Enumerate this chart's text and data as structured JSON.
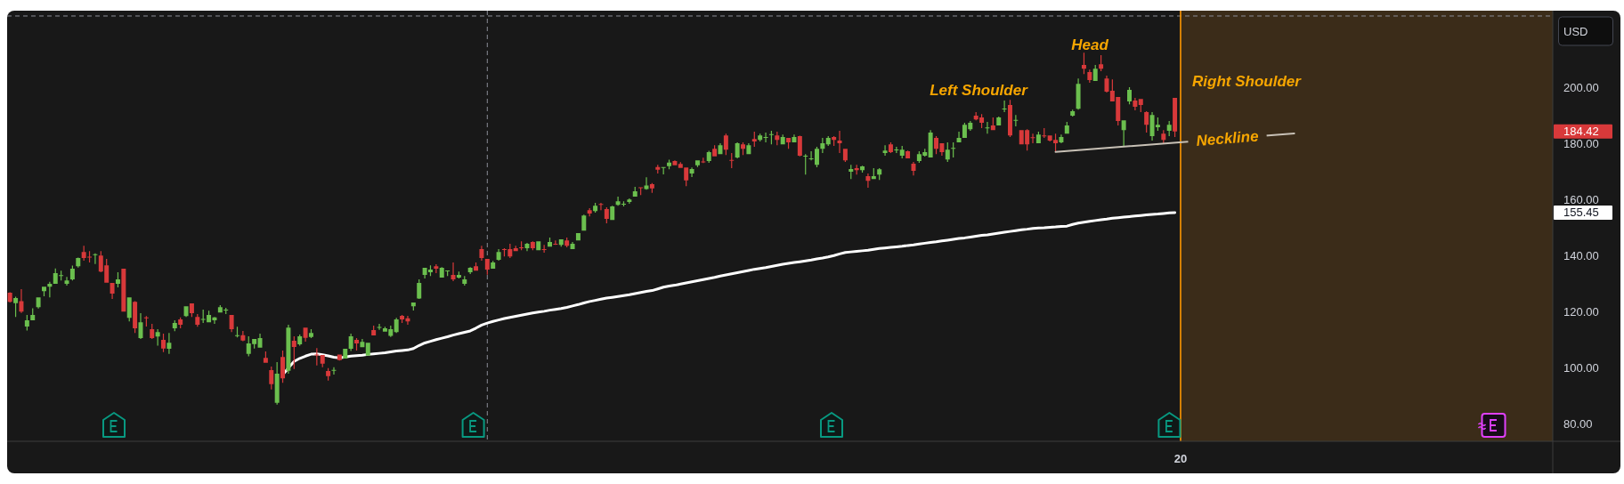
{
  "chart_data": {
    "type": "candlestick",
    "ylabel": "USD",
    "categories": [
      null,
      null,
      null,
      null,
      null,
      null,
      null,
      null,
      null,
      null,
      null,
      null,
      null,
      null,
      null,
      null,
      null,
      null,
      null,
      null,
      null,
      null,
      null,
      null,
      null,
      null,
      null,
      null,
      null,
      null,
      null,
      null,
      null,
      null,
      null,
      null,
      null,
      null,
      null,
      null,
      null,
      null,
      null,
      null,
      null,
      null,
      null,
      null,
      null,
      null,
      null,
      null,
      null,
      null,
      null,
      null,
      null,
      null,
      null,
      null,
      null,
      null,
      null,
      null,
      null,
      null,
      null,
      null,
      null,
      null,
      null,
      null,
      null,
      null,
      null,
      null,
      null,
      null,
      null,
      null,
      null,
      null,
      null,
      null,
      null,
      null,
      null,
      null,
      null,
      null,
      null,
      null,
      null,
      null,
      null,
      null,
      null,
      null,
      null,
      null,
      null,
      null,
      null,
      null,
      null,
      null,
      null,
      null,
      null,
      null,
      null,
      null,
      null,
      null,
      null,
      null,
      null,
      null,
      null,
      null,
      null,
      null,
      null,
      null,
      null,
      null,
      null,
      null,
      null,
      null,
      null,
      null,
      null,
      null,
      null,
      null,
      null,
      null,
      null,
      null,
      null,
      null,
      null,
      null,
      null,
      null,
      null,
      null,
      null,
      null,
      null,
      null,
      null,
      null,
      null,
      null,
      null,
      null,
      null,
      null,
      null,
      null,
      null,
      null,
      null,
      null,
      null,
      null,
      null,
      null,
      null,
      null,
      null,
      null,
      null,
      null,
      null,
      null,
      null,
      null,
      null,
      null,
      null,
      null,
      null,
      null,
      null,
      null,
      null,
      null,
      null,
      null,
      null,
      null,
      null,
      null,
      null,
      null,
      null,
      null,
      null,
      null,
      null,
      null,
      null,
      null,
      null,
      null,
      null,
      null,
      null,
      null,
      null,
      null,
      null,
      null,
      null,
      null,
      null,
      null,
      null,
      null,
      null,
      null,
      null,
      null,
      null,
      null,
      null,
      null,
      null,
      null,
      null,
      null,
      null,
      null,
      null,
      null,
      null,
      null,
      null,
      null,
      null,
      null,
      null,
      null,
      null,
      null,
      null,
      null,
      null,
      null,
      null,
      null,
      null,
      null,
      null,
      null,
      null,
      null,
      null,
      null,
      null,
      null,
      null,
      null,
      null,
      null,
      null,
      null,
      null,
      null
    ],
    "ohlc": [
      [
        126.8,
        127.0,
        123.3,
        123.6
      ],
      [
        123.1,
        125.4,
        118.2,
        124.9
      ],
      [
        123.8,
        128.1,
        119.6,
        120.1
      ],
      [
        114.8,
        118.9,
        113.3,
        117.0
      ],
      [
        117.0,
        121.3,
        117.0,
        118.9
      ],
      [
        121.7,
        125.2,
        121.2,
        125.2
      ],
      [
        127.4,
        129.0,
        125.6,
        129.0
      ],
      [
        129.0,
        130.7,
        125.2,
        130.0
      ],
      [
        130.0,
        135.5,
        130.0,
        133.8
      ],
      [
        133.0,
        134.7,
        131.2,
        133.1
      ],
      [
        130.0,
        132.5,
        129.4,
        131.2
      ],
      [
        131.6,
        136.5,
        131.2,
        135.4
      ],
      [
        136.3,
        139.4,
        135.8,
        139.2
      ],
      [
        141.4,
        143.6,
        138.3,
        139.2
      ],
      [
        139.7,
        141.7,
        137.6,
        139.6
      ],
      [
        140.5,
        140.9,
        137.1,
        140.6
      ],
      [
        140.1,
        141.7,
        134.1,
        134.4
      ],
      [
        136.6,
        138.9,
        130.4,
        130.4
      ],
      [
        130.3,
        130.3,
        124.6,
        126.5
      ],
      [
        130.0,
        134.1,
        128.7,
        131.6
      ],
      [
        135.4,
        135.4,
        120.1,
        120.1
      ],
      [
        117.9,
        125.2,
        116.6,
        125.2
      ],
      [
        123.6,
        123.8,
        112.5,
        114.1
      ],
      [
        110.6,
        119.5,
        110.3,
        116.3
      ],
      [
        118.0,
        118.5,
        114.8,
        117.8
      ],
      [
        113.8,
        115.7,
        110.3,
        110.6
      ],
      [
        111.2,
        113.8,
        107.9,
        112.8
      ],
      [
        110.0,
        112.2,
        105.6,
        106.9
      ],
      [
        106.8,
        112.5,
        105.0,
        109.0
      ],
      [
        114.1,
        117.0,
        113.1,
        116.0
      ],
      [
        117.3,
        118.0,
        114.1,
        115.4
      ],
      [
        118.5,
        122.0,
        118.2,
        122.0
      ],
      [
        123.0,
        123.0,
        118.2,
        119.5
      ],
      [
        118.2,
        119.2,
        114.7,
        115.4
      ],
      [
        117.4,
        120.8,
        116.0,
        117.5
      ],
      [
        116.3,
        120.4,
        116.3,
        118.9
      ],
      [
        117.0,
        118.2,
        115.7,
        118.0
      ],
      [
        119.8,
        122.4,
        119.8,
        121.7
      ],
      [
        120.7,
        121.4,
        119.2,
        120.8
      ],
      [
        118.9,
        118.9,
        112.8,
        113.8
      ],
      [
        111.6,
        114.7,
        110.9,
        111.7
      ],
      [
        111.7,
        113.2,
        109.5,
        109.8
      ],
      [
        105.0,
        111.3,
        104.1,
        108.7
      ],
      [
        108.5,
        110.3,
        106.9,
        110.3
      ],
      [
        107.2,
        112.2,
        107.2,
        110.6
      ],
      [
        103.6,
        105.9,
        101.8,
        101.8
      ],
      [
        99.2,
        100.5,
        92.3,
        94.2
      ],
      [
        87.5,
        102.1,
        86.9,
        97.9
      ],
      [
        103.9,
        106.2,
        94.7,
        96.3
      ],
      [
        99.0,
        115.4,
        97.9,
        114.4
      ],
      [
        109.7,
        111.3,
        99.6,
        107.5
      ],
      [
        108.4,
        111.9,
        107.9,
        111.3
      ],
      [
        114.4,
        114.4,
        109.4,
        110.7
      ],
      [
        111.0,
        113.8,
        110.6,
        112.5
      ],
      [
        104.8,
        107.1,
        100.9,
        104.6
      ],
      [
        104.6,
        104.6,
        100.2,
        101.5
      ],
      [
        98.9,
        99.9,
        95.5,
        97.1
      ],
      [
        99.2,
        100.2,
        97.6,
        99.3
      ],
      [
        104.8,
        104.8,
        102.6,
        102.8
      ],
      [
        103.3,
        106.8,
        103.3,
        106.8
      ],
      [
        106.8,
        112.2,
        106.0,
        111.3
      ],
      [
        110.0,
        110.6,
        106.2,
        108.7
      ],
      [
        107.4,
        110.3,
        107.4,
        109.3
      ],
      [
        104.4,
        109.0,
        104.4,
        109.0
      ],
      [
        113.5,
        115.1,
        111.6,
        111.6
      ],
      [
        114.5,
        115.7,
        113.6,
        114.6
      ],
      [
        112.9,
        114.7,
        112.9,
        114.1
      ],
      [
        111.4,
        115.1,
        111.0,
        113.8
      ],
      [
        112.8,
        117.9,
        112.5,
        117.3
      ],
      [
        118.6,
        118.9,
        116.0,
        117.3
      ],
      [
        117.7,
        118.6,
        115.4,
        116.6
      ],
      [
        122.0,
        123.3,
        120.5,
        123.3
      ],
      [
        124.8,
        131.6,
        124.6,
        130.3
      ],
      [
        133.2,
        135.7,
        131.9,
        135.7
      ],
      [
        134.1,
        136.6,
        132.8,
        135.1
      ],
      [
        136.3,
        137.0,
        133.8,
        135.4
      ],
      [
        132.2,
        136.0,
        132.2,
        135.7
      ],
      [
        134.7,
        134.8,
        132.8,
        134.8
      ],
      [
        133.2,
        137.6,
        131.0,
        131.6
      ],
      [
        132.2,
        134.4,
        131.9,
        133.2
      ],
      [
        130.0,
        132.8,
        129.4,
        131.6
      ],
      [
        134.1,
        136.0,
        133.5,
        135.7
      ],
      [
        136.3,
        137.6,
        134.7,
        134.7
      ],
      [
        142.4,
        143.6,
        138.3,
        139.2
      ],
      [
        138.9,
        138.9,
        133.3,
        135.1
      ],
      [
        135.4,
        138.2,
        135.4,
        137.6
      ],
      [
        138.6,
        142.4,
        138.3,
        141.4
      ],
      [
        142.4,
        142.7,
        139.8,
        142.3
      ],
      [
        142.4,
        144.3,
        139.2,
        139.8
      ],
      [
        142.7,
        143.6,
        141.7,
        141.7
      ],
      [
        143.0,
        145.2,
        142.0,
        142.9
      ],
      [
        142.7,
        144.6,
        141.7,
        144.3
      ],
      [
        144.9,
        145.2,
        142.0,
        142.7
      ],
      [
        142.0,
        145.2,
        142.0,
        145.2
      ],
      [
        142.4,
        143.9,
        141.1,
        142.3
      ],
      [
        143.3,
        146.5,
        143.3,
        144.9
      ],
      [
        144.3,
        145.5,
        143.9,
        144.2
      ],
      [
        143.9,
        145.9,
        143.3,
        145.9
      ],
      [
        145.5,
        146.5,
        143.0,
        143.6
      ],
      [
        142.4,
        144.9,
        142.4,
        144.3
      ],
      [
        145.5,
        148.1,
        145.5,
        148.1
      ],
      [
        149.0,
        154.7,
        149.0,
        154.4
      ],
      [
        156.3,
        157.0,
        154.1,
        155.1
      ],
      [
        156.0,
        158.9,
        155.4,
        157.9
      ],
      [
        158.5,
        158.9,
        156.3,
        158.4
      ],
      [
        156.7,
        157.3,
        151.6,
        153.2
      ],
      [
        152.8,
        157.9,
        152.8,
        157.6
      ],
      [
        158.2,
        161.1,
        157.9,
        159.5
      ],
      [
        158.5,
        159.5,
        157.6,
        158.6
      ],
      [
        159.2,
        160.5,
        158.6,
        160.1
      ],
      [
        161.1,
        164.6,
        161.1,
        163.0
      ],
      [
        164.5,
        164.5,
        161.7,
        164.4
      ],
      [
        163.8,
        168.0,
        163.6,
        165.1
      ],
      [
        165.6,
        166.0,
        162.5,
        164.1
      ],
      [
        171.7,
        172.5,
        169.4,
        170.7
      ],
      [
        171.6,
        171.7,
        169.1,
        171.7
      ],
      [
        172.0,
        174.3,
        170.9,
        173.3
      ],
      [
        173.8,
        174.1,
        172.3,
        172.3
      ],
      [
        172.8,
        173.4,
        171.4,
        171.4
      ],
      [
        171.5,
        171.5,
        164.9,
        166.9
      ],
      [
        169.4,
        171.5,
        168.1,
        171.0
      ],
      [
        172.3,
        174.1,
        171.7,
        174.1
      ],
      [
        173.7,
        175.0,
        173.1,
        173.6
      ],
      [
        173.8,
        177.5,
        173.2,
        177.0
      ],
      [
        178.2,
        179.5,
        175.5,
        175.5
      ],
      [
        176.3,
        180.2,
        176.3,
        179.5
      ],
      [
        183.0,
        183.6,
        176.0,
        177.9
      ],
      [
        174.2,
        176.7,
        171.3,
        174.1
      ],
      [
        175.1,
        180.5,
        174.8,
        180.2
      ],
      [
        179.8,
        180.5,
        176.0,
        178.2
      ],
      [
        176.3,
        180.2,
        176.3,
        179.5
      ],
      [
        181.7,
        184.3,
        178.9,
        180.8
      ],
      [
        181.4,
        183.6,
        180.8,
        183.0
      ],
      [
        182.3,
        184.0,
        180.5,
        182.4
      ],
      [
        183.3,
        184.6,
        179.8,
        183.4
      ],
      [
        183.0,
        184.3,
        179.5,
        181.4
      ],
      [
        179.8,
        183.3,
        179.8,
        182.4
      ],
      [
        182.1,
        182.1,
        178.2,
        180.5
      ],
      [
        180.5,
        183.3,
        180.5,
        182.4
      ],
      [
        182.7,
        182.9,
        175.5,
        175.7
      ],
      [
        175.6,
        176.3,
        169.0,
        175.7
      ],
      [
        174.7,
        177.3,
        174.1,
        174.8
      ],
      [
        172.5,
        178.9,
        171.6,
        178.2
      ],
      [
        178.2,
        182.1,
        176.7,
        180.2
      ],
      [
        179.8,
        182.7,
        179.2,
        182.1
      ],
      [
        182.4,
        182.7,
        179.2,
        181.4
      ],
      [
        181.1,
        184.6,
        176.7,
        180.2
      ],
      [
        178.2,
        178.2,
        173.5,
        174.1
      ],
      [
        170.0,
        172.5,
        167.4,
        171.0
      ],
      [
        171.3,
        172.5,
        169.0,
        170.6
      ],
      [
        170.6,
        172.2,
        169.7,
        171.9
      ],
      [
        168.4,
        169.4,
        164.3,
        166.8
      ],
      [
        167.4,
        171.3,
        167.4,
        168.4
      ],
      [
        169.0,
        171.3,
        167.1,
        170.9
      ],
      [
        176.7,
        179.5,
        175.7,
        177.6
      ],
      [
        179.8,
        180.5,
        176.7,
        177.0
      ],
      [
        177.9,
        178.9,
        176.7,
        178.0
      ],
      [
        175.7,
        179.2,
        174.8,
        177.9
      ],
      [
        177.3,
        177.6,
        174.8,
        174.8
      ],
      [
        172.9,
        173.5,
        168.7,
        170.3
      ],
      [
        173.8,
        177.3,
        173.2,
        176.3
      ],
      [
        175.7,
        178.2,
        175.4,
        177.0
      ],
      [
        175.1,
        184.9,
        175.1,
        184.0
      ],
      [
        182.1,
        182.7,
        176.3,
        178.2
      ],
      [
        180.2,
        180.2,
        175.7,
        177.0
      ],
      [
        174.4,
        180.5,
        173.5,
        177.9
      ],
      [
        178.4,
        180.5,
        175.1,
        178.5
      ],
      [
        180.5,
        184.3,
        180.5,
        182.1
      ],
      [
        182.1,
        187.5,
        182.1,
        186.8
      ],
      [
        185.2,
        188.1,
        184.6,
        187.5
      ],
      [
        190.0,
        191.3,
        188.4,
        188.7
      ],
      [
        189.4,
        190.6,
        185.6,
        187.5
      ],
      [
        185.7,
        187.8,
        183.6,
        185.8
      ],
      [
        186.5,
        189.4,
        184.9,
        184.9
      ],
      [
        186.5,
        189.7,
        186.5,
        189.4
      ],
      [
        192.5,
        195.4,
        191.3,
        192.6
      ],
      [
        193.8,
        195.7,
        182.4,
        183.0
      ],
      [
        188.4,
        190.3,
        186.2,
        188.5
      ],
      [
        184.9,
        184.9,
        179.8,
        179.8
      ],
      [
        184.9,
        185.2,
        177.6,
        179.8
      ],
      [
        182.3,
        183.6,
        180.2,
        182.2
      ],
      [
        180.2,
        184.3,
        180.2,
        183.3
      ],
      [
        183.0,
        185.6,
        182.1,
        182.9
      ],
      [
        183.0,
        183.0,
        180.8,
        181.1
      ],
      [
        181.4,
        183.6,
        177.0,
        180.2
      ],
      [
        180.5,
        183.3,
        180.2,
        182.4
      ],
      [
        183.6,
        187.8,
        183.6,
        186.5
      ],
      [
        190.0,
        192.2,
        189.7,
        191.6
      ],
      [
        192.5,
        203.3,
        192.2,
        201.4
      ],
      [
        208.1,
        212.5,
        204.9,
        206.8
      ],
      [
        205.6,
        206.5,
        201.8,
        202.7
      ],
      [
        202.4,
        208.1,
        202.4,
        206.8
      ],
      [
        208.4,
        211.6,
        205.9,
        206.8
      ],
      [
        203.3,
        204.3,
        198.3,
        198.6
      ],
      [
        198.9,
        203.0,
        195.1,
        195.1
      ],
      [
        196.7,
        196.7,
        186.5,
        188.1
      ],
      [
        184.9,
        188.4,
        179.2,
        188.4
      ],
      [
        195.1,
        200.2,
        194.1,
        199.2
      ],
      [
        195.4,
        196.4,
        191.9,
        193.2
      ],
      [
        196.0,
        196.0,
        191.3,
        193.8
      ],
      [
        191.3,
        191.6,
        184.0,
        186.8
      ],
      [
        182.7,
        191.3,
        181.1,
        190.3
      ],
      [
        185.9,
        189.4,
        184.6,
        186.8
      ],
      [
        183.6,
        184.9,
        180.2,
        181.4
      ],
      [
        184.6,
        188.1,
        182.7,
        186.8
      ],
      [
        196.4,
        196.4,
        182.4,
        184.42
      ],
      null,
      null,
      null,
      null,
      null,
      null,
      null,
      null,
      null,
      null,
      null,
      null,
      null,
      null,
      null,
      null,
      null,
      null,
      null,
      null,
      null,
      null,
      null,
      null,
      null,
      null,
      null,
      null,
      null,
      null,
      null,
      null,
      null,
      null,
      null,
      null,
      null,
      null,
      null,
      null,
      null,
      null,
      null,
      null,
      null,
      null,
      null,
      null,
      null,
      null,
      null,
      null,
      null,
      null,
      null,
      null,
      null,
      null,
      null,
      null,
      null,
      null,
      null,
      null,
      null,
      null
    ],
    "colors": [
      "#d8393a",
      "#6bbf4e",
      "#d8393a",
      "#6bbf4e",
      "#6bbf4e",
      "#6bbf4e",
      "#6bbf4e",
      "#6bbf4e",
      "#6bbf4e",
      "#6bbf4e",
      "#6bbf4e",
      "#6bbf4e",
      "#6bbf4e",
      "#d8393a",
      "#d8393a",
      "#6bbf4e",
      "#d8393a",
      "#d8393a",
      "#d8393a",
      "#6bbf4e",
      "#d8393a",
      "#6bbf4e",
      "#d8393a",
      "#6bbf4e",
      "#d8393a",
      "#d8393a",
      "#6bbf4e",
      "#d8393a",
      "#6bbf4e",
      "#6bbf4e",
      "#d8393a",
      "#6bbf4e",
      "#d8393a",
      "#d8393a",
      "#6bbf4e",
      "#6bbf4e",
      "#6bbf4e",
      "#6bbf4e",
      "#6bbf4e",
      "#d8393a",
      "#6bbf4e",
      "#d8393a",
      "#6bbf4e",
      "#6bbf4e",
      "#6bbf4e",
      "#d8393a",
      "#d8393a",
      "#6bbf4e",
      "#d8393a",
      "#6bbf4e",
      "#d8393a",
      "#6bbf4e",
      "#d8393a",
      "#6bbf4e",
      "#d8393a",
      "#d8393a",
      "#d8393a",
      "#6bbf4e",
      "#d8393a",
      "#6bbf4e",
      "#6bbf4e",
      "#d8393a",
      "#6bbf4e",
      "#6bbf4e",
      "#d8393a",
      "#6bbf4e",
      "#6bbf4e",
      "#6bbf4e",
      "#6bbf4e",
      "#d8393a",
      "#d8393a",
      "#6bbf4e",
      "#6bbf4e",
      "#6bbf4e",
      "#6bbf4e",
      "#d8393a",
      "#6bbf4e",
      "#6bbf4e",
      "#d8393a",
      "#6bbf4e",
      "#6bbf4e",
      "#6bbf4e",
      "#d8393a",
      "#d8393a",
      "#d8393a",
      "#6bbf4e",
      "#6bbf4e",
      "#d8393a",
      "#d8393a",
      "#d8393a",
      "#d8393a",
      "#6bbf4e",
      "#d8393a",
      "#6bbf4e",
      "#d8393a",
      "#6bbf4e",
      "#d8393a",
      "#6bbf4e",
      "#d8393a",
      "#6bbf4e",
      "#6bbf4e",
      "#6bbf4e",
      "#d8393a",
      "#6bbf4e",
      "#d8393a",
      "#d8393a",
      "#6bbf4e",
      "#6bbf4e",
      "#6bbf4e",
      "#6bbf4e",
      "#6bbf4e",
      "#d8393a",
      "#6bbf4e",
      "#d8393a",
      "#d8393a",
      "#6bbf4e",
      "#6bbf4e",
      "#d8393a",
      "#d8393a",
      "#d8393a",
      "#6bbf4e",
      "#6bbf4e",
      "#d8393a",
      "#6bbf4e",
      "#d8393a",
      "#6bbf4e",
      "#d8393a",
      "#d8393a",
      "#6bbf4e",
      "#d8393a",
      "#6bbf4e",
      "#d8393a",
      "#6bbf4e",
      "#6bbf4e",
      "#6bbf4e",
      "#d8393a",
      "#6bbf4e",
      "#d8393a",
      "#6bbf4e",
      "#d8393a",
      "#6bbf4e",
      "#6bbf4e",
      "#6bbf4e",
      "#6bbf4e",
      "#6bbf4e",
      "#d8393a",
      "#d8393a",
      "#d8393a",
      "#6bbf4e",
      "#d8393a",
      "#6bbf4e",
      "#d8393a",
      "#6bbf4e",
      "#6bbf4e",
      "#6bbf4e",
      "#d8393a",
      "#6bbf4e",
      "#6bbf4e",
      "#d8393a",
      "#d8393a",
      "#6bbf4e",
      "#6bbf4e",
      "#6bbf4e",
      "#d8393a",
      "#d8393a",
      "#6bbf4e",
      "#6bbf4e",
      "#6bbf4e",
      "#6bbf4e",
      "#6bbf4e",
      "#d8393a",
      "#d8393a",
      "#6bbf4e",
      "#d8393a",
      "#6bbf4e",
      "#6bbf4e",
      "#d8393a",
      "#6bbf4e",
      "#d8393a",
      "#d8393a",
      "#d8393a",
      "#6bbf4e",
      "#d8393a",
      "#d8393a",
      "#d8393a",
      "#6bbf4e",
      "#6bbf4e",
      "#6bbf4e",
      "#6bbf4e",
      "#d8393a",
      "#d8393a",
      "#6bbf4e",
      "#d8393a",
      "#d8393a",
      "#d8393a",
      "#d8393a",
      "#6bbf4e",
      "#6bbf4e",
      "#d8393a",
      "#d8393a",
      "#d8393a",
      "#6bbf4e",
      "#6bbf4e",
      "#d8393a",
      "#6bbf4e",
      "#d8393a",
      null,
      null,
      null,
      null,
      null,
      null,
      null,
      null,
      null,
      null,
      null,
      null,
      null,
      null,
      null,
      null,
      null,
      null,
      null,
      null,
      null,
      null,
      null,
      null,
      null,
      null,
      null,
      null,
      null,
      null,
      null,
      null,
      null,
      null,
      null,
      null,
      null,
      null,
      null,
      null,
      null,
      null,
      null,
      null,
      null,
      null,
      null,
      null,
      null,
      null,
      null,
      null,
      null,
      null,
      null,
      null,
      null,
      null,
      null,
      null,
      null,
      null,
      null,
      null,
      null,
      null
    ],
    "series": [
      {
        "type": "line",
        "color": "#ffffff",
        "values": [
          null,
          null,
          null,
          null,
          null,
          null,
          null,
          null,
          null,
          null,
          null,
          null,
          null,
          null,
          null,
          null,
          null,
          null,
          null,
          null,
          null,
          null,
          null,
          null,
          null,
          null,
          null,
          null,
          null,
          null,
          null,
          null,
          null,
          null,
          null,
          null,
          null,
          null,
          null,
          null,
          null,
          null,
          null,
          null,
          null,
          null,
          null,
          null,
          97.5,
          100.0,
          102.3,
          103.4,
          104.2,
          104.9,
          105.0,
          104.7,
          104.3,
          103.8,
          103.6,
          103.9,
          104.2,
          104.4,
          104.5,
          104.8,
          105.0,
          105.2,
          105.4,
          105.7,
          106.0,
          106.2,
          106.4,
          106.9,
          108.0,
          108.9,
          109.5,
          110.1,
          110.6,
          111.1,
          111.7,
          112.2,
          112.7,
          113.2,
          114.2,
          115.3,
          116.0,
          116.6,
          117.1,
          117.6,
          118.0,
          118.4,
          118.8,
          119.2,
          119.6,
          119.9,
          120.2,
          120.6,
          120.9,
          121.2,
          121.6,
          122.1,
          122.6,
          123.2,
          123.7,
          124.1,
          124.5,
          124.9,
          125.2,
          125.5,
          125.8,
          126.1,
          126.5,
          126.9,
          127.3,
          127.6,
          128.2,
          128.8,
          129.2,
          129.5,
          129.9,
          130.3,
          130.7,
          131.1,
          131.5,
          131.9,
          132.3,
          132.8,
          133.2,
          133.6,
          134.0,
          134.4,
          134.8,
          135.2,
          135.5,
          135.8,
          136.2,
          136.6,
          137.0,
          137.3,
          137.6,
          137.9,
          138.2,
          138.5,
          138.9,
          139.2,
          139.6,
          140.1,
          140.7,
          141.2,
          141.4,
          141.6,
          141.8,
          142.0,
          142.3,
          142.6,
          142.8,
          143.0,
          143.2,
          143.4,
          143.7,
          143.9,
          144.2,
          144.5,
          144.8,
          145.0,
          145.3,
          145.6,
          145.9,
          146.2,
          146.4,
          146.7,
          147.0,
          147.3,
          147.5,
          147.8,
          148.1,
          148.4,
          148.7,
          149.0,
          149.3,
          149.5,
          149.8,
          149.9,
          150.0,
          150.2,
          150.3,
          150.5,
          150.6,
          151.2,
          151.7,
          152.0,
          152.3,
          152.6,
          152.9,
          153.1,
          153.4,
          153.6,
          153.8,
          154.0,
          154.2,
          154.4,
          154.6,
          154.8,
          154.9,
          155.1,
          155.3,
          155.45,
          null,
          null,
          null,
          null,
          null,
          null,
          null,
          null,
          null,
          null,
          null,
          null,
          null,
          null,
          null,
          null,
          null,
          null,
          null,
          null,
          null,
          null,
          null,
          null,
          null,
          null,
          null,
          null,
          null,
          null,
          null,
          null,
          null,
          null,
          null,
          null,
          null,
          null,
          null,
          null,
          null,
          null,
          null,
          null,
          null,
          null,
          null,
          null,
          null,
          null,
          null,
          null,
          null,
          null,
          null,
          null,
          null,
          null,
          null,
          null,
          null,
          null,
          null,
          null,
          null,
          null
        ]
      },
      {
        "type": "line",
        "name": "Neckline",
        "color": "#c8c1b6",
        "values": [
          null,
          null,
          null,
          null,
          null,
          null,
          null,
          null,
          null,
          null,
          null,
          null,
          null,
          null,
          null,
          null,
          null,
          null,
          null,
          null,
          null,
          null,
          null,
          null,
          null,
          null,
          null,
          null,
          null,
          null,
          null,
          null,
          null,
          null,
          null,
          null,
          null,
          null,
          null,
          null,
          null,
          null,
          null,
          null,
          null,
          null,
          null,
          null,
          null,
          null,
          null,
          null,
          null,
          null,
          null,
          null,
          null,
          null,
          null,
          null,
          null,
          null,
          null,
          null,
          null,
          null,
          null,
          null,
          null,
          null,
          null,
          null,
          null,
          null,
          null,
          null,
          null,
          null,
          null,
          null,
          null,
          null,
          null,
          null,
          null,
          null,
          null,
          null,
          null,
          null,
          null,
          null,
          null,
          null,
          null,
          null,
          null,
          null,
          null,
          null,
          null,
          null,
          null,
          null,
          null,
          null,
          null,
          null,
          null,
          null,
          null,
          null,
          null,
          null,
          null,
          null,
          null,
          null,
          null,
          null,
          null,
          null,
          null,
          null,
          null,
          null,
          null,
          null,
          null,
          null,
          null,
          null,
          null,
          null,
          null,
          null,
          null,
          null,
          null,
          null,
          null,
          null,
          null,
          null,
          null,
          null,
          null,
          null,
          null,
          null,
          null,
          null,
          null,
          null,
          null,
          null,
          null,
          null,
          null,
          null,
          null,
          null,
          null,
          null,
          null,
          null,
          null,
          null,
          null,
          null,
          null,
          null,
          null,
          null,
          null,
          null,
          null,
          null,
          null,
          null,
          null,
          null,
          null,
          null,
          177.1,
          null,
          null,
          null,
          null,
          null,
          null,
          null,
          null,
          null,
          null,
          null,
          null,
          null,
          null,
          null,
          null,
          null,
          null,
          null,
          null,
          null,
          null,
          null,
          null,
          null,
          null,
          null,
          null,
          null,
          null,
          null,
          null,
          null,
          null,
          null,
          null,
          null,
          null,
          null,
          null,
          null,
          183.7,
          null,
          null,
          null,
          null,
          null,
          null,
          null,
          null,
          null,
          null,
          null,
          null,
          null,
          null,
          null,
          null,
          null,
          null,
          null,
          null,
          null,
          null,
          null,
          null,
          null,
          null,
          null,
          null,
          null,
          null,
          null,
          null,
          null,
          null,
          null,
          null,
          null,
          null,
          null,
          null,
          null,
          null,
          null,
          null,
          null
        ]
      }
    ],
    "ylim": [
      73.8,
      227.5
    ],
    "yticks": [
      {
        "value": 80,
        "label": "80.00"
      },
      {
        "value": 100,
        "label": "100.00"
      },
      {
        "value": 120,
        "label": "120.00"
      },
      {
        "value": 140,
        "label": "140.00"
      },
      {
        "value": 160,
        "label": "160.00"
      },
      {
        "value": 180,
        "label": "180.00"
      },
      {
        "value": 200,
        "label": "200.00"
      }
    ],
    "ref_lines": [
      {
        "axis": "y",
        "value": 225.6,
        "color": "#8a8d96",
        "line_style": "dashed"
      }
    ],
    "annotations": [
      "Head",
      "Left Shoulder",
      "Right Shoulder",
      "184.42",
      "155.45",
      "20"
    ]
  }
}
